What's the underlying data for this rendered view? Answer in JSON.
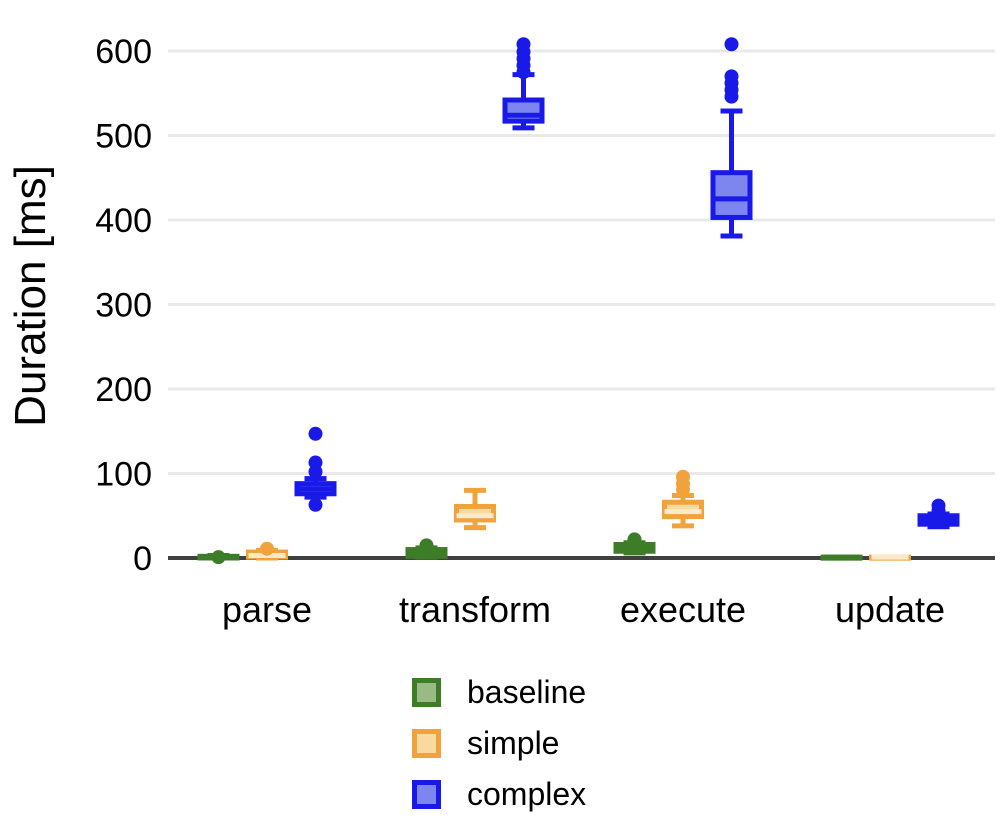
{
  "chart_data": {
    "type": "boxplot",
    "title": "",
    "xlabel": "",
    "ylabel": "Duration [ms]",
    "ylim": [
      0,
      620
    ],
    "yticks": [
      0,
      100,
      200,
      300,
      400,
      500,
      600
    ],
    "categories": [
      "parse",
      "transform",
      "execute",
      "update"
    ],
    "grid": "horizontal",
    "legend_position": "bottom-center",
    "colors": {
      "background": "#ffffff",
      "grid": "#e9e9e9",
      "axis": "#404040",
      "text": "#000000"
    },
    "series": [
      {
        "name": "baseline",
        "stroke": "#3d7d28",
        "fill": "#9aba85",
        "median_color": "#3d7d28",
        "boxes": [
          {
            "category": "parse",
            "whisker_low": 0,
            "q1": 0,
            "median": 1,
            "q3": 2,
            "whisker_high": 3,
            "outliers": [
              1
            ]
          },
          {
            "category": "transform",
            "whisker_low": 1,
            "q1": 2,
            "median": 5,
            "q3": 10,
            "whisker_high": 12,
            "outliers": [
              15
            ]
          },
          {
            "category": "execute",
            "whisker_low": 6,
            "q1": 8,
            "median": 12,
            "q3": 16,
            "whisker_high": 18,
            "outliers": [
              22
            ]
          },
          {
            "category": "update",
            "whisker_low": 0,
            "q1": 0,
            "median": 1,
            "q3": 1,
            "whisker_high": 1,
            "outliers": []
          }
        ]
      },
      {
        "name": "simple",
        "stroke": "#f0a33c",
        "fill": "#fad9a0",
        "median_color": "#fce9c9",
        "boxes": [
          {
            "category": "parse",
            "whisker_low": 0,
            "q1": 1,
            "median": 3,
            "q3": 7,
            "whisker_high": 9,
            "outliers": [
              11
            ]
          },
          {
            "category": "transform",
            "whisker_low": 36,
            "q1": 45,
            "median": 50,
            "q3": 61,
            "whisker_high": 80,
            "outliers": []
          },
          {
            "category": "execute",
            "whisker_low": 38,
            "q1": 49,
            "median": 55,
            "q3": 66,
            "whisker_high": 74,
            "outliers": [
              81,
              88,
              96
            ]
          },
          {
            "category": "update",
            "whisker_low": 0,
            "q1": 0,
            "median": 1,
            "q3": 1,
            "whisker_high": 1,
            "outliers": []
          }
        ]
      },
      {
        "name": "complex",
        "stroke": "#1a1ae8",
        "fill": "#7c86ee",
        "median_color": "#1a1ae8",
        "boxes": [
          {
            "category": "parse",
            "whisker_low": 72,
            "q1": 76,
            "median": 82,
            "q3": 88,
            "whisker_high": 94,
            "outliers": [
              63,
              102,
              113,
              147
            ]
          },
          {
            "category": "transform",
            "whisker_low": 509,
            "q1": 517,
            "median": 524,
            "q3": 542,
            "whisker_high": 572,
            "outliers": [
              575,
              583,
              591,
              599,
              608
            ]
          },
          {
            "category": "execute",
            "whisker_low": 381,
            "q1": 403,
            "median": 425,
            "q3": 456,
            "whisker_high": 529,
            "outliers": [
              546,
              554,
              562,
              570,
              608
            ]
          },
          {
            "category": "update",
            "whisker_low": 37,
            "q1": 40,
            "median": 45,
            "q3": 50,
            "whisker_high": 52,
            "outliers": [
              56,
              62
            ]
          }
        ]
      }
    ]
  }
}
